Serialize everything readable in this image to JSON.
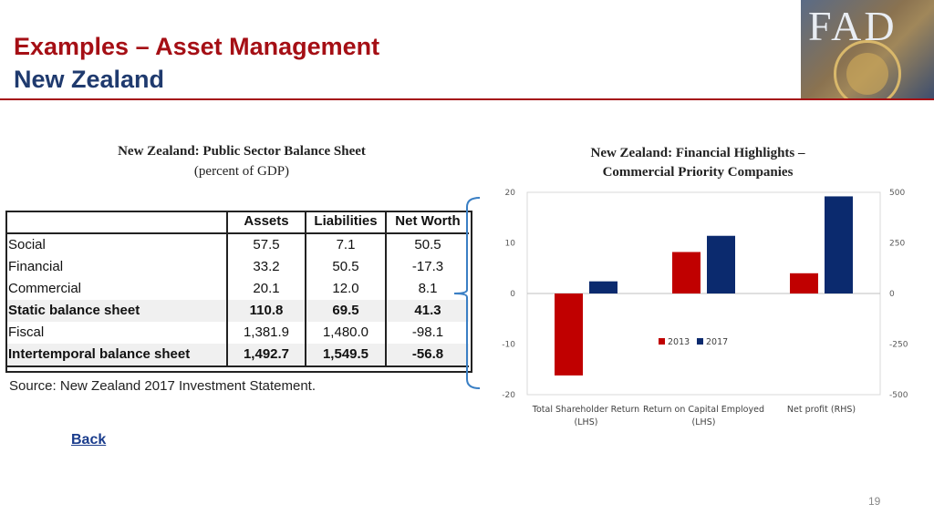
{
  "slide": {
    "title_line1": "Examples – Asset Management",
    "title_line2": "New Zealand",
    "logo_text": "FAD",
    "back_link": "Back",
    "page_number": "19"
  },
  "table": {
    "heading": "New Zealand: Public Sector Balance Sheet",
    "subheading": "(percent of GDP)",
    "columns": [
      "",
      "Assets",
      "Liabilities",
      "Net Worth"
    ],
    "rows": [
      {
        "label": "Social",
        "assets": "57.5",
        "liabilities": "7.1",
        "net_worth": "50.5"
      },
      {
        "label": "Financial",
        "assets": "33.2",
        "liabilities": "50.5",
        "net_worth": "-17.3"
      },
      {
        "label": "Commercial",
        "assets": "20.1",
        "liabilities": "12.0",
        "net_worth": "8.1"
      },
      {
        "label": "Static balance sheet",
        "assets": "110.8",
        "liabilities": "69.5",
        "net_worth": "41.3"
      },
      {
        "label": "Fiscal",
        "assets": "1,381.9",
        "liabilities": "1,480.0",
        "net_worth": "-98.1"
      },
      {
        "label": "Intertemporal balance sheet",
        "assets": "1,492.7",
        "liabilities": "1,549.5",
        "net_worth": "-56.8"
      }
    ],
    "source": "Source: New Zealand 2017 Investment Statement."
  },
  "chart_heading_line1": "New Zealand: Financial Highlights –",
  "chart_heading_line2": "Commercial Priority Companies",
  "chart_data": {
    "type": "bar",
    "title": "New Zealand: Financial Highlights – Commercial Priority Companies",
    "categories": [
      "Total Shareholder Return (LHS)",
      "Return on Capital Employed (LHS)",
      "Net profit (RHS)"
    ],
    "category_lines": [
      [
        "Total Shareholder Return",
        "(LHS)"
      ],
      [
        "Return on Capital Employed",
        "(LHS)"
      ],
      [
        "Net profit (RHS)"
      ]
    ],
    "series": [
      {
        "name": "2013",
        "color": "#c00000",
        "values": [
          -16.2,
          8.2,
          100
        ]
      },
      {
        "name": "2017",
        "color": "#0b2a6e",
        "values": [
          2.4,
          11.4,
          480
        ]
      }
    ],
    "axis_of_category": [
      "left",
      "left",
      "right"
    ],
    "ylim_left": [
      -20,
      20
    ],
    "ylim_right": [
      -500,
      500
    ],
    "left_ticks": [
      "20",
      "10",
      "0",
      "-10",
      "-20"
    ],
    "right_ticks": [
      "500",
      "250",
      "0",
      "-250",
      "-500"
    ],
    "legend_position": "center-right",
    "grid": false
  }
}
